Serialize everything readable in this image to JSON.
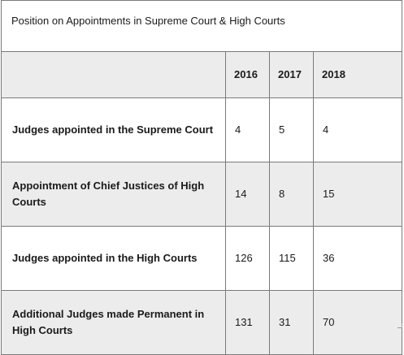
{
  "table": {
    "title": "Position on Appointments in Supreme Court & High Courts",
    "headers": [
      "",
      "2016",
      "2017",
      "2018"
    ],
    "rows": [
      {
        "label": "Judges appointed in the Supreme Court",
        "values": [
          "4",
          "5",
          "4"
        ]
      },
      {
        "label": "Appointment of Chief Justices of High Courts",
        "values": [
          "14",
          "8",
          "15"
        ]
      },
      {
        "label": "Judges appointed in the High Courts",
        "values": [
          "126",
          "115",
          "36"
        ]
      },
      {
        "label": "Additional Judges made Permanent in High Courts",
        "values": [
          "131",
          "31",
          "70"
        ]
      }
    ]
  },
  "colors": {
    "shade": "#ececec",
    "border": "#7a7a7a",
    "text": "#1a1a1a"
  }
}
